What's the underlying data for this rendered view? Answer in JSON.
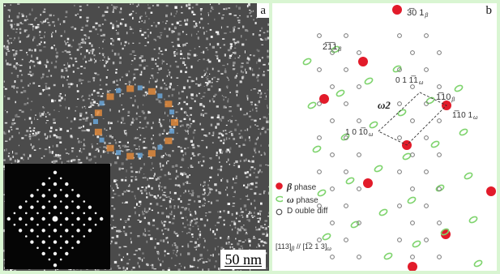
{
  "panel_a": {
    "tag": "a",
    "scale_bar": "50 nm"
  },
  "panel_b": {
    "tag": "b",
    "labels": {
      "l301": "3̅0 1",
      "l211": "2̅1̅1",
      "l0111": "0 1 1̅1",
      "l110": "1̅10",
      "l1101": "1̅10 1",
      "l1010": "1 0 1̅0",
      "omega2": "ω2"
    },
    "label_subs": {
      "beta": "β",
      "omega": "ω"
    },
    "legend": [
      {
        "name": "beta",
        "symbol": "β",
        "text": "phase",
        "color": "#e21b2a"
      },
      {
        "name": "omega",
        "symbol": "ω",
        "text": "phase",
        "color": "#7fd46e"
      },
      {
        "name": "double",
        "symbol": "",
        "text": "D ouble diff",
        "color": "#555555"
      }
    ],
    "orientation": {
      "left": "[113]",
      "mid": " // [1̅2 1 3]",
      "sub_beta": "β",
      "sub_omega": "ω"
    }
  }
}
